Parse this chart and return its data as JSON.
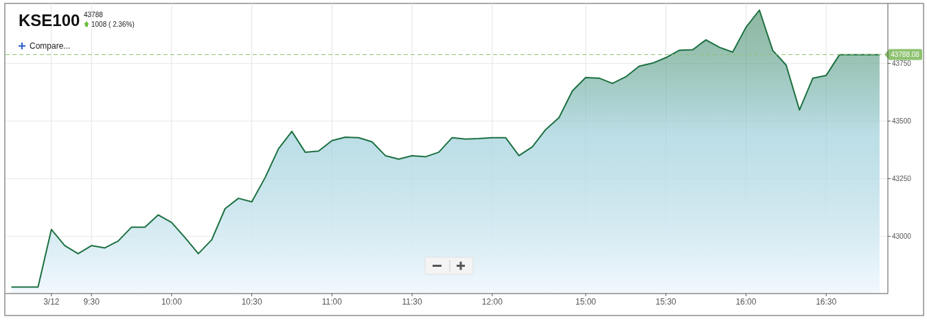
{
  "chart_data": {
    "type": "area",
    "title": "KSE100",
    "annotations": [
      "43788",
      "1008 ( 2.36%)",
      "Compare..."
    ],
    "categories": [
      null,
      null,
      null,
      "3/12",
      null,
      null,
      "9:30",
      null,
      null,
      null,
      null,
      null,
      "10:00",
      null,
      null,
      null,
      null,
      null,
      "10:30",
      null,
      null,
      null,
      null,
      null,
      "11:00",
      null,
      null,
      null,
      null,
      null,
      "11:30",
      null,
      null,
      null,
      null,
      null,
      "12:00",
      null,
      null,
      null,
      null,
      null,
      null,
      "15:00",
      null,
      null,
      null,
      null,
      null,
      "15:30",
      null,
      null,
      null,
      null,
      null,
      "16:00",
      null,
      null,
      null,
      null,
      null,
      "16:30",
      null,
      null,
      null,
      null
    ],
    "series": [
      {
        "color": "#1b7040",
        "values": [
          42780,
          42780,
          42780,
          43030,
          42960,
          42925,
          42960,
          42950,
          42980,
          43040,
          43040,
          43093,
          43060,
          42995,
          42925,
          42985,
          43120,
          43165,
          43150,
          43255,
          43380,
          43455,
          43365,
          43370,
          43415,
          43430,
          43428,
          43410,
          43350,
          43335,
          43350,
          43345,
          43365,
          43428,
          43422,
          43424,
          43428,
          43428,
          43350,
          43388,
          43463,
          43515,
          43631,
          43689,
          43686,
          43663,
          43692,
          43738,
          43751,
          43775,
          43807,
          43809,
          43852,
          43820,
          43799,
          43907,
          43981,
          43806,
          43743,
          43548,
          43686,
          43698,
          43788,
          43788,
          43788,
          43788
        ]
      }
    ],
    "ylim": [
      42752,
      44010
    ],
    "yticks": [
      43000,
      43250,
      43500,
      43750
    ],
    "grid": true,
    "ref_lines": [
      {
        "axis": "y",
        "value": 43788.08,
        "label": "43788.08",
        "color": "#8dc26f",
        "line_style": "dashed"
      }
    ]
  }
}
